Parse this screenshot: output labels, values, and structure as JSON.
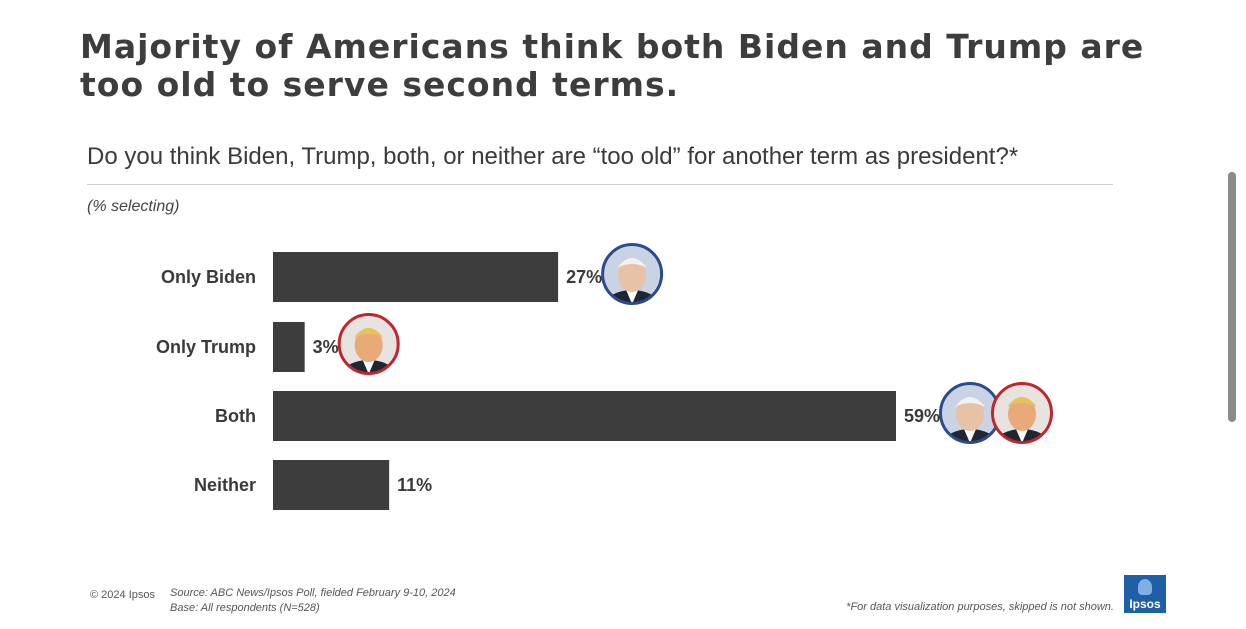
{
  "title": "Majority of Americans think both Biden and Trump are too old to serve second terms.",
  "question": "Do you think Biden, Trump, both, or neither are “too old” for another term as president?*",
  "subtitle": "(% selecting)",
  "footer": {
    "copyright": "© 2024 Ipsos",
    "source_line1": "Source: ABC News/Ipsos Poll, fielded February 9-10, 2024",
    "source_line2": "Base: All respondents (N=528)",
    "footnote": "*For data visualization purposes, skipped is not shown.",
    "logo": "Ipsos"
  },
  "chart_data": {
    "type": "bar",
    "orientation": "horizontal",
    "categories": [
      "Only Biden",
      "Only Trump",
      "Both",
      "Neither"
    ],
    "values": [
      27,
      3,
      59,
      11
    ],
    "value_labels": [
      "27%",
      "3%",
      "59%",
      "11%"
    ],
    "bar_color": "#3d3d3d",
    "title": "Majority of Americans think both Biden and Trump are too old to serve second terms.",
    "xlabel": "",
    "ylabel": "",
    "xlim": [
      0,
      100
    ],
    "grid": false,
    "legend": "none",
    "portraits": [
      [
        "biden"
      ],
      [
        "trump"
      ],
      [
        "biden",
        "trump"
      ],
      []
    ],
    "portrait_colors": {
      "biden": "#2c4a8c",
      "trump": "#c0262d"
    }
  }
}
